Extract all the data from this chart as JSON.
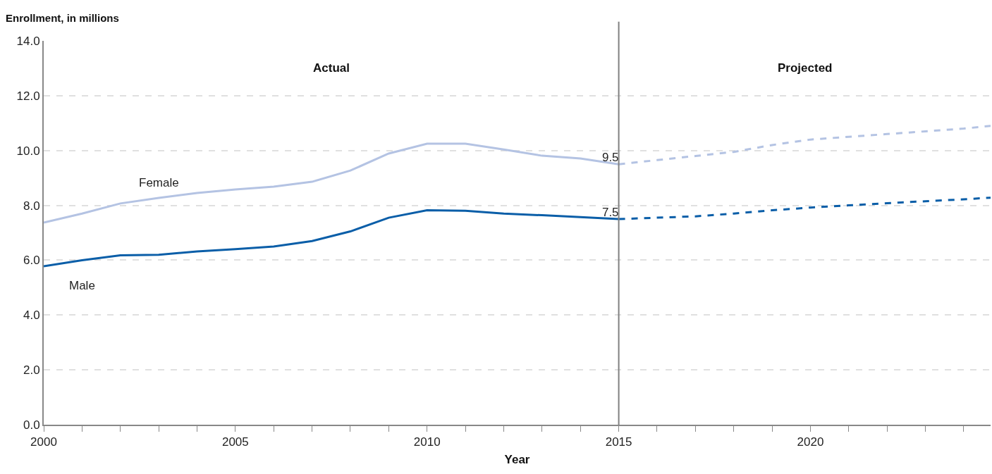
{
  "chart_data": {
    "type": "line",
    "xlabel": "Year",
    "ylabel": "Enrollment, in millions",
    "annotations": [
      "Actual",
      "Projected"
    ],
    "xlim": [
      2000,
      2024.7
    ],
    "xticks": [
      2000,
      {
        "value": 2001,
        "label": null
      },
      {
        "value": 2002,
        "label": null
      },
      {
        "value": 2003,
        "label": null
      },
      {
        "value": 2004,
        "label": null
      },
      2005,
      {
        "value": 2006,
        "label": null
      },
      {
        "value": 2007,
        "label": null
      },
      {
        "value": 2008,
        "label": null
      },
      {
        "value": 2009,
        "label": null
      },
      2010,
      {
        "value": 2011,
        "label": null
      },
      {
        "value": 2012,
        "label": null
      },
      {
        "value": 2013,
        "label": null
      },
      {
        "value": 2014,
        "label": null
      },
      2015,
      {
        "value": 2016,
        "label": null
      },
      {
        "value": 2017,
        "label": null
      },
      {
        "value": 2018,
        "label": null
      },
      {
        "value": 2019,
        "label": null
      },
      2020,
      {
        "value": 2021,
        "label": null
      },
      {
        "value": 2022,
        "label": null
      },
      {
        "value": 2023,
        "label": null
      },
      {
        "value": 2024,
        "label": null
      }
    ],
    "ylim": [
      0,
      14
    ],
    "yticks": [
      {
        "value": 0,
        "label": "0.0"
      },
      {
        "value": 2,
        "label": "2.0"
      },
      {
        "value": 4,
        "label": "4.0"
      },
      {
        "value": 6,
        "label": "6.0"
      },
      {
        "value": 8,
        "label": "8.0"
      },
      {
        "value": 10,
        "label": "10.0"
      },
      {
        "value": 12,
        "label": "12.0"
      },
      {
        "value": 14,
        "label": "14.0"
      }
    ],
    "grid": "y",
    "legend": false,
    "marker": "none",
    "ref_lines": [
      {
        "axis": "x",
        "value": 2015,
        "color": "#808080"
      }
    ],
    "series": [
      {
        "name": "Female",
        "color": "#b4c3e3",
        "line_style": "solid",
        "x": [
          2000,
          2001,
          2002,
          2003,
          2004,
          2005,
          2006,
          2007,
          2008,
          2009,
          2010,
          2011,
          2012,
          2013,
          2014,
          2015
        ],
        "values": [
          7.37,
          7.7,
          8.07,
          8.27,
          8.45,
          8.58,
          8.68,
          8.86,
          9.27,
          9.89,
          10.25,
          10.25,
          10.04,
          9.81,
          9.71,
          9.5
        ],
        "value_labels": [
          null,
          null,
          null,
          null,
          null,
          null,
          null,
          null,
          null,
          null,
          null,
          null,
          null,
          null,
          null,
          "9.5"
        ]
      },
      {
        "name": "Male",
        "color": "#0a5ea8",
        "line_style": "solid",
        "x": [
          2000,
          2001,
          2002,
          2003,
          2004,
          2005,
          2006,
          2007,
          2008,
          2009,
          2010,
          2011,
          2012,
          2013,
          2014,
          2015
        ],
        "values": [
          5.78,
          6.0,
          6.18,
          6.2,
          6.32,
          6.4,
          6.5,
          6.7,
          7.05,
          7.55,
          7.82,
          7.8,
          7.7,
          7.64,
          7.57,
          7.5
        ],
        "value_labels": [
          null,
          null,
          null,
          null,
          null,
          null,
          null,
          null,
          null,
          null,
          null,
          null,
          null,
          null,
          null,
          "7.5"
        ]
      },
      {
        "color": "#b4c3e3",
        "line_style": "dashed",
        "x": [
          2015,
          2016,
          2017,
          2018,
          2019,
          2020,
          2021,
          2022,
          2023,
          2024,
          2024.7
        ],
        "values": [
          9.5,
          9.65,
          9.8,
          9.95,
          10.2,
          10.4,
          10.5,
          10.6,
          10.7,
          10.8,
          10.9
        ]
      },
      {
        "color": "#0a5ea8",
        "line_style": "dashed",
        "x": [
          2015,
          2016,
          2017,
          2018,
          2019,
          2020,
          2021,
          2022,
          2023,
          2024,
          2024.7
        ],
        "values": [
          7.5,
          7.55,
          7.6,
          7.7,
          7.82,
          7.92,
          8.0,
          8.08,
          8.15,
          8.22,
          8.28
        ]
      }
    ]
  }
}
